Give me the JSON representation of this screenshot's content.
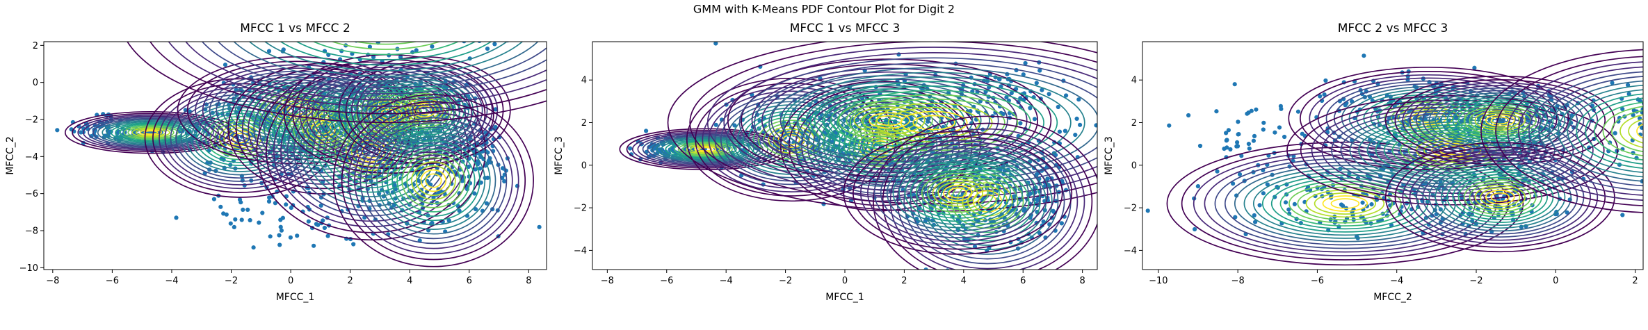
{
  "figure": {
    "suptitle": "GMM with K-Means PDF Contour Plot for Digit 2"
  },
  "chart_data": [
    {
      "type": "scatter",
      "title": "MFCC 1 vs MFCC 2",
      "xlabel": "MFCC_1",
      "ylabel": "MFCC_2",
      "xlim": [
        -8.3,
        8.6
      ],
      "ylim": [
        -10.1,
        2.2
      ],
      "xticks": [
        -8,
        -6,
        -4,
        -2,
        0,
        2,
        4,
        6,
        8
      ],
      "yticks": [
        -10,
        -8,
        -6,
        -4,
        -2,
        0,
        2
      ],
      "grid": false,
      "point_color": "#1f77b4",
      "contour_colormap": "viridis",
      "components": [
        {
          "mean": [
            -4.7,
            -2.7
          ],
          "sx": 0.9,
          "sy": 0.35
        },
        {
          "mean": [
            -1.7,
            -3.0
          ],
          "sx": 1.0,
          "sy": 1.0
        },
        {
          "mean": [
            0.2,
            -1.5
          ],
          "sx": 1.25,
          "sy": 0.9
        },
        {
          "mean": [
            1.1,
            -2.5
          ],
          "sx": 1.0,
          "sy": 1.1
        },
        {
          "mean": [
            2.7,
            -3.7
          ],
          "sx": 1.2,
          "sy": 1.5
        },
        {
          "mean": [
            3.3,
            -1.7
          ],
          "sx": 1.1,
          "sy": 1.0
        },
        {
          "mean": [
            4.5,
            -1.5
          ],
          "sx": 0.9,
          "sy": 0.9
        },
        {
          "mean": [
            4.8,
            -5.3
          ],
          "sx": 1.05,
          "sy": 1.45
        },
        {
          "mean": [
            3.2,
            3.6
          ],
          "sx": 2.8,
          "sy": 1.8
        }
      ],
      "scatter_spread": [
        {
          "mean": [
            -6.5,
            -2.5
          ],
          "sx": 0.6,
          "sy": 0.35,
          "n": 40
        },
        {
          "mean": [
            0.5,
            -6.8
          ],
          "sx": 1.8,
          "sy": 1.1,
          "n": 80
        },
        {
          "mean": [
            6.5,
            -4.0
          ],
          "sx": 0.5,
          "sy": 0.8,
          "n": 60
        }
      ]
    },
    {
      "type": "scatter",
      "title": "MFCC 1 vs MFCC 3",
      "xlabel": "MFCC_1",
      "ylabel": "MFCC_3",
      "xlim": [
        -8.5,
        8.5
      ],
      "ylim": [
        -4.9,
        5.8
      ],
      "xticks": [
        -8,
        -6,
        -4,
        -2,
        0,
        2,
        4,
        6,
        8
      ],
      "yticks": [
        -4,
        -2,
        0,
        2,
        4
      ],
      "grid": false,
      "point_color": "#1f77b4",
      "contour_colormap": "viridis",
      "components": [
        {
          "mean": [
            -4.7,
            0.75
          ],
          "sx": 0.9,
          "sy": 0.3
        },
        {
          "mean": [
            -1.8,
            1.2
          ],
          "sx": 1.1,
          "sy": 0.9
        },
        {
          "mean": [
            1.2,
            0.9
          ],
          "sx": 1.05,
          "sy": 0.95
        },
        {
          "mean": [
            1.5,
            2.1
          ],
          "sx": 1.7,
          "sy": 0.9
        },
        {
          "mean": [
            3.0,
            2.0
          ],
          "sx": 2.8,
          "sy": 1.3
        },
        {
          "mean": [
            4.8,
            -1.7
          ],
          "sx": 1.2,
          "sy": 1.25
        },
        {
          "mean": [
            3.8,
            -1.3
          ],
          "sx": 1.2,
          "sy": 0.9
        }
      ],
      "scatter_spread": [
        {
          "mean": [
            -6.3,
            0.8
          ],
          "sx": 0.5,
          "sy": 0.3,
          "n": 40
        },
        {
          "mean": [
            5.5,
            3.5
          ],
          "sx": 1.0,
          "sy": 0.5,
          "n": 40
        },
        {
          "mean": [
            6.7,
            -1.0
          ],
          "sx": 0.4,
          "sy": 1.0,
          "n": 50
        }
      ]
    },
    {
      "type": "scatter",
      "title": "MFCC 2 vs MFCC 3",
      "xlabel": "MFCC_2",
      "ylabel": "MFCC_3",
      "xlim": [
        -10.4,
        2.2
      ],
      "ylim": [
        -4.9,
        5.8
      ],
      "xticks": [
        -10,
        -8,
        -6,
        -4,
        -2,
        0,
        2
      ],
      "yticks": [
        -4,
        -2,
        0,
        2,
        4
      ],
      "grid": false,
      "point_color": "#1f77b4",
      "contour_colormap": "viridis",
      "components": [
        {
          "mean": [
            -5.3,
            -1.8
          ],
          "sx": 1.4,
          "sy": 0.9
        },
        {
          "mean": [
            -3.2,
            2.2
          ],
          "sx": 1.1,
          "sy": 0.75
        },
        {
          "mean": [
            -2.6,
            0.7
          ],
          "sx": 1.3,
          "sy": 0.8
        },
        {
          "mean": [
            -1.4,
            2.1
          ],
          "sx": 0.9,
          "sy": 0.65
        },
        {
          "mean": [
            -1.4,
            -1.5
          ],
          "sx": 0.9,
          "sy": 0.8
        },
        {
          "mean": [
            2.6,
            1.6
          ],
          "sx": 1.4,
          "sy": 1.2
        }
      ],
      "scatter_spread": [
        {
          "mean": [
            -7.8,
            1.4
          ],
          "sx": 0.8,
          "sy": 1.0,
          "n": 50
        },
        {
          "mean": [
            -4.0,
            3.5
          ],
          "sx": 1.2,
          "sy": 0.6,
          "n": 40
        }
      ]
    }
  ]
}
